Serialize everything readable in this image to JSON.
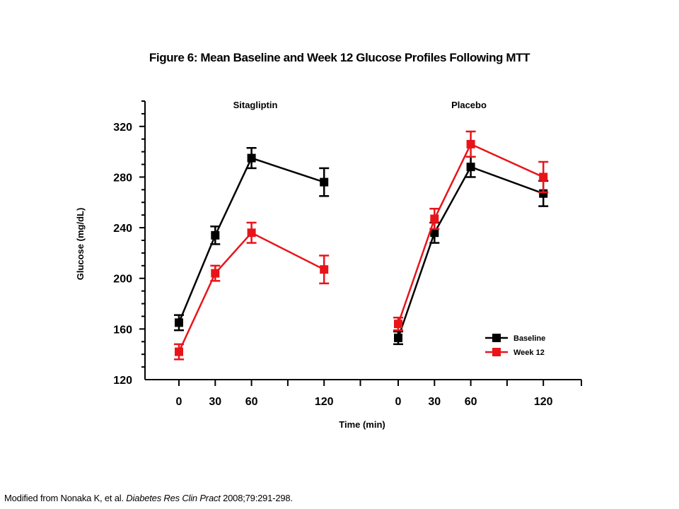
{
  "figure": {
    "title": "Figure 6: Mean Baseline and Week 12 Glucose Profiles Following MTT"
  },
  "citation": {
    "prefix": "Modified from Nonaka K, et al. ",
    "journal": "Diabetes Res Clin Pract",
    "suffix": " 2008;79:291-298."
  },
  "colors": {
    "baseline": "#000000",
    "week12": "#e8141a",
    "axis": "#000000"
  },
  "chart_data": {
    "type": "line",
    "ylabel": "Glucose (mg/dL)",
    "xlabel": "Time (min)",
    "ylim": [
      120,
      340
    ],
    "yticks": [
      120,
      160,
      200,
      240,
      280,
      320
    ],
    "xticks": [
      0,
      30,
      60,
      120
    ],
    "xlim": [
      -30,
      150
    ],
    "error_bars": true,
    "grid": false,
    "legend_position": "bottom-right",
    "legend": [
      "Baseline",
      "Week 12"
    ],
    "panels": [
      {
        "title": "Sitagliptin",
        "series": [
          {
            "name": "Baseline",
            "x": [
              0,
              30,
              60,
              120
            ],
            "y": [
              165,
              234,
              295,
              276
            ],
            "err": [
              6,
              7,
              8,
              11
            ]
          },
          {
            "name": "Week 12",
            "x": [
              0,
              30,
              60,
              120
            ],
            "y": [
              142,
              204,
              236,
              207
            ],
            "err": [
              6,
              6,
              8,
              11
            ]
          }
        ]
      },
      {
        "title": "Placebo",
        "series": [
          {
            "name": "Baseline",
            "x": [
              0,
              30,
              60,
              120
            ],
            "y": [
              153,
              236,
              288,
              267
            ],
            "err": [
              5,
              8,
              8,
              10
            ]
          },
          {
            "name": "Week 12",
            "x": [
              0,
              30,
              60,
              120
            ],
            "y": [
              164,
              247,
              306,
              280
            ],
            "err": [
              5,
              8,
              10,
              12
            ]
          }
        ]
      }
    ]
  }
}
